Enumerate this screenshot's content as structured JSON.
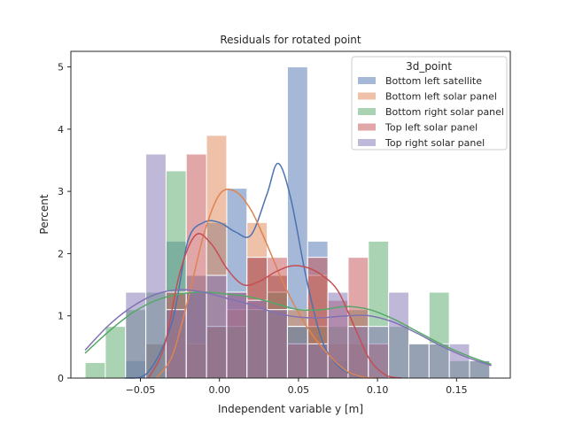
{
  "chart_data": {
    "type": "histogram",
    "title": "Residuals for rotated point",
    "xlabel": "Independent variable y [m]",
    "ylabel": "Percent",
    "xlim": [
      -0.094,
      0.184
    ],
    "ylim": [
      0,
      5.25
    ],
    "xticks": [
      -0.05,
      0.0,
      0.05,
      0.1,
      0.15
    ],
    "xtick_labels": [
      "−0.05",
      "0.00",
      "0.05",
      "0.10",
      "0.15"
    ],
    "yticks": [
      0,
      1,
      2,
      3,
      4,
      5
    ],
    "ytick_labels": [
      "0",
      "1",
      "2",
      "3",
      "4",
      "5"
    ],
    "grid": false,
    "legend": {
      "title": "3d_point",
      "placement": "top-right"
    },
    "bin_start": -0.085,
    "bin_width": 0.0128,
    "series": [
      {
        "name": "Bottom left satellite",
        "color": "#4c72b0",
        "values": [
          0,
          0,
          0.28,
          0.55,
          2.2,
          1.65,
          2.5,
          3.05,
          1.95,
          1.65,
          5.0,
          2.2,
          0.28,
          0,
          0,
          0,
          0,
          0,
          0,
          0
        ],
        "kde": [
          [
            -0.06,
            0.0
          ],
          [
            -0.045,
            0.1
          ],
          [
            -0.03,
            0.9
          ],
          [
            -0.02,
            2.2
          ],
          [
            -0.01,
            2.5
          ],
          [
            0.0,
            2.5
          ],
          [
            0.01,
            2.35
          ],
          [
            0.02,
            2.3
          ],
          [
            0.03,
            2.95
          ],
          [
            0.037,
            3.45
          ],
          [
            0.045,
            2.9
          ],
          [
            0.055,
            1.6
          ],
          [
            0.065,
            0.6
          ],
          [
            0.075,
            0.2
          ],
          [
            0.085,
            0.05
          ],
          [
            0.095,
            0.0
          ]
        ]
      },
      {
        "name": "Bottom left solar panel",
        "color": "#dd8452",
        "values": [
          0,
          0,
          0,
          0.55,
          1.1,
          0.55,
          3.9,
          1.1,
          2.5,
          1.65,
          1.1,
          1.65,
          0.55,
          0.55,
          0,
          0,
          0,
          0,
          0,
          0
        ],
        "kde": [
          [
            -0.04,
            0.0
          ],
          [
            -0.03,
            0.35
          ],
          [
            -0.02,
            1.25
          ],
          [
            -0.01,
            2.3
          ],
          [
            0.0,
            2.95
          ],
          [
            0.01,
            3.0
          ],
          [
            0.02,
            2.7
          ],
          [
            0.03,
            2.15
          ],
          [
            0.04,
            1.55
          ],
          [
            0.05,
            1.05
          ],
          [
            0.06,
            0.65
          ],
          [
            0.07,
            0.35
          ],
          [
            0.08,
            0.12
          ],
          [
            0.09,
            0.02
          ],
          [
            0.1,
            0.0
          ]
        ]
      },
      {
        "name": "Bottom right solar panel",
        "color": "#55a868",
        "values": [
          0.25,
          0.83,
          1.1,
          1.38,
          3.33,
          1.38,
          0.83,
          0.83,
          1.1,
          1.38,
          0.83,
          0.83,
          0.83,
          1.1,
          2.2,
          0.83,
          0.55,
          1.38,
          0.28,
          0.28
        ],
        "kde": [
          [
            -0.085,
            0.4
          ],
          [
            -0.07,
            0.75
          ],
          [
            -0.055,
            1.05
          ],
          [
            -0.04,
            1.25
          ],
          [
            -0.025,
            1.35
          ],
          [
            -0.01,
            1.38
          ],
          [
            0.005,
            1.35
          ],
          [
            0.02,
            1.3
          ],
          [
            0.035,
            1.2
          ],
          [
            0.05,
            1.1
          ],
          [
            0.065,
            1.1
          ],
          [
            0.08,
            1.15
          ],
          [
            0.095,
            1.1
          ],
          [
            0.11,
            0.95
          ],
          [
            0.125,
            0.75
          ],
          [
            0.14,
            0.55
          ],
          [
            0.155,
            0.38
          ],
          [
            0.172,
            0.22
          ]
        ]
      },
      {
        "name": "Top left solar panel",
        "color": "#c44e52",
        "values": [
          0,
          0,
          0,
          0,
          1.38,
          3.6,
          0.83,
          1.38,
          1.94,
          1.94,
          0.55,
          1.94,
          1.25,
          1.94,
          0.55,
          0,
          0,
          0,
          0,
          0
        ],
        "kde": [
          [
            -0.045,
            0.0
          ],
          [
            -0.035,
            0.5
          ],
          [
            -0.025,
            1.7
          ],
          [
            -0.015,
            2.3
          ],
          [
            -0.005,
            2.15
          ],
          [
            0.005,
            1.75
          ],
          [
            0.015,
            1.5
          ],
          [
            0.025,
            1.55
          ],
          [
            0.035,
            1.7
          ],
          [
            0.045,
            1.8
          ],
          [
            0.055,
            1.78
          ],
          [
            0.065,
            1.65
          ],
          [
            0.075,
            1.4
          ],
          [
            0.085,
            0.85
          ],
          [
            0.095,
            0.3
          ],
          [
            0.105,
            0.05
          ],
          [
            0.115,
            0.0
          ]
        ]
      },
      {
        "name": "Top right solar panel",
        "color": "#8172b3",
        "values": [
          0,
          0,
          1.38,
          3.6,
          1.1,
          1.38,
          1.65,
          1.38,
          1.25,
          1.1,
          0.83,
          0.55,
          1.38,
          0.83,
          0.83,
          1.38,
          0.55,
          0.55,
          0.55,
          0.28
        ],
        "kde": [
          [
            -0.085,
            0.45
          ],
          [
            -0.07,
            0.85
          ],
          [
            -0.055,
            1.15
          ],
          [
            -0.04,
            1.35
          ],
          [
            -0.025,
            1.42
          ],
          [
            -0.01,
            1.38
          ],
          [
            0.005,
            1.28
          ],
          [
            0.02,
            1.18
          ],
          [
            0.035,
            1.05
          ],
          [
            0.05,
            0.98
          ],
          [
            0.065,
            0.97
          ],
          [
            0.08,
            1.0
          ],
          [
            0.095,
            1.0
          ],
          [
            0.11,
            0.9
          ],
          [
            0.125,
            0.72
          ],
          [
            0.14,
            0.52
          ],
          [
            0.155,
            0.35
          ],
          [
            0.172,
            0.2
          ]
        ]
      }
    ]
  }
}
